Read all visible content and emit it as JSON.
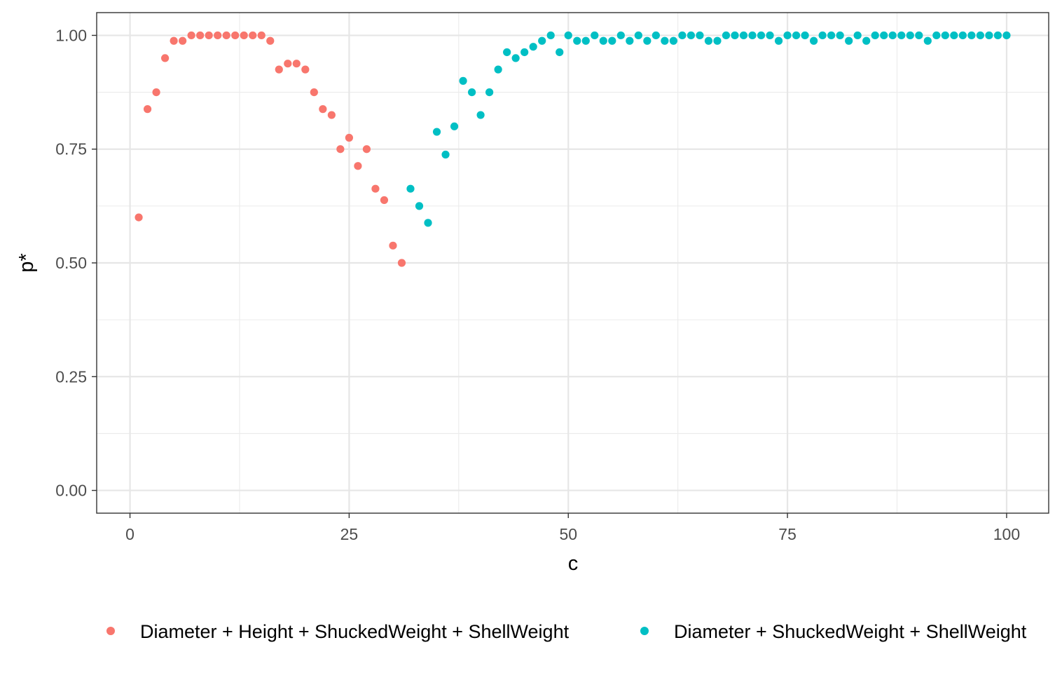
{
  "chart_data": {
    "type": "scatter",
    "xlabel": "c",
    "ylabel": "p*",
    "xlim": [
      -3.8,
      104.8
    ],
    "ylim": [
      -0.05,
      1.05
    ],
    "x_ticks": [
      {
        "value": 0,
        "label": "0"
      },
      {
        "value": 25,
        "label": "25"
      },
      {
        "value": 50,
        "label": "50"
      },
      {
        "value": 75,
        "label": "75"
      },
      {
        "value": 100,
        "label": "100"
      }
    ],
    "y_ticks": [
      {
        "value": 0,
        "label": "0.00"
      },
      {
        "value": 0.25,
        "label": "0.25"
      },
      {
        "value": 0.5,
        "label": "0.50"
      },
      {
        "value": 0.75,
        "label": "0.75"
      },
      {
        "value": 1,
        "label": "1.00"
      }
    ],
    "grid": true,
    "legend_position": "bottom",
    "series": [
      {
        "name": "Diameter + Height + ShuckedWeight + ShellWeight",
        "color": "#F8766D",
        "x": [
          1,
          2,
          3,
          4,
          5,
          6,
          7,
          8,
          9,
          10,
          11,
          12,
          13,
          14,
          15,
          16,
          17,
          18,
          19,
          20,
          21,
          22,
          23,
          24,
          25,
          26,
          27,
          28,
          29,
          30,
          31
        ],
        "y": [
          0.6,
          0.838,
          0.875,
          0.95,
          0.988,
          0.988,
          1.0,
          1.0,
          1.0,
          1.0,
          1.0,
          1.0,
          1.0,
          1.0,
          1.0,
          0.988,
          0.925,
          0.938,
          0.938,
          0.925,
          0.875,
          0.838,
          0.825,
          0.75,
          0.775,
          0.713,
          0.75,
          0.663,
          0.638,
          0.538,
          0.5
        ]
      },
      {
        "name": "Diameter + ShuckedWeight + ShellWeight",
        "color": "#00BFC4",
        "x": [
          32,
          33,
          34,
          35,
          36,
          37,
          38,
          39,
          40,
          41,
          42,
          43,
          44,
          45,
          46,
          47,
          48,
          49,
          50,
          51,
          52,
          53,
          54,
          55,
          56,
          57,
          58,
          59,
          60,
          61,
          62,
          63,
          64,
          65,
          66,
          67,
          68,
          69,
          70,
          71,
          72,
          73,
          74,
          75,
          76,
          77,
          78,
          79,
          80,
          81,
          82,
          83,
          84,
          85,
          86,
          87,
          88,
          89,
          90,
          91,
          92,
          93,
          94,
          95,
          96,
          97,
          98,
          99,
          100
        ],
        "y": [
          0.663,
          0.625,
          0.588,
          0.788,
          0.738,
          0.8,
          0.9,
          0.875,
          0.825,
          0.875,
          0.925,
          0.963,
          0.95,
          0.963,
          0.975,
          0.988,
          1.0,
          0.963,
          1.0,
          0.988,
          0.988,
          1.0,
          0.988,
          0.988,
          1.0,
          0.988,
          1.0,
          0.988,
          1.0,
          0.988,
          0.988,
          1.0,
          1.0,
          1.0,
          0.988,
          0.988,
          1.0,
          1.0,
          1.0,
          1.0,
          1.0,
          1.0,
          0.988,
          1.0,
          1.0,
          1.0,
          0.988,
          1.0,
          1.0,
          1.0,
          0.988,
          1.0,
          0.988,
          1.0,
          1.0,
          1.0,
          1.0,
          1.0,
          1.0,
          0.988,
          1.0,
          1.0,
          1.0,
          1.0,
          1.0,
          1.0,
          1.0,
          1.0,
          1.0
        ]
      }
    ]
  }
}
